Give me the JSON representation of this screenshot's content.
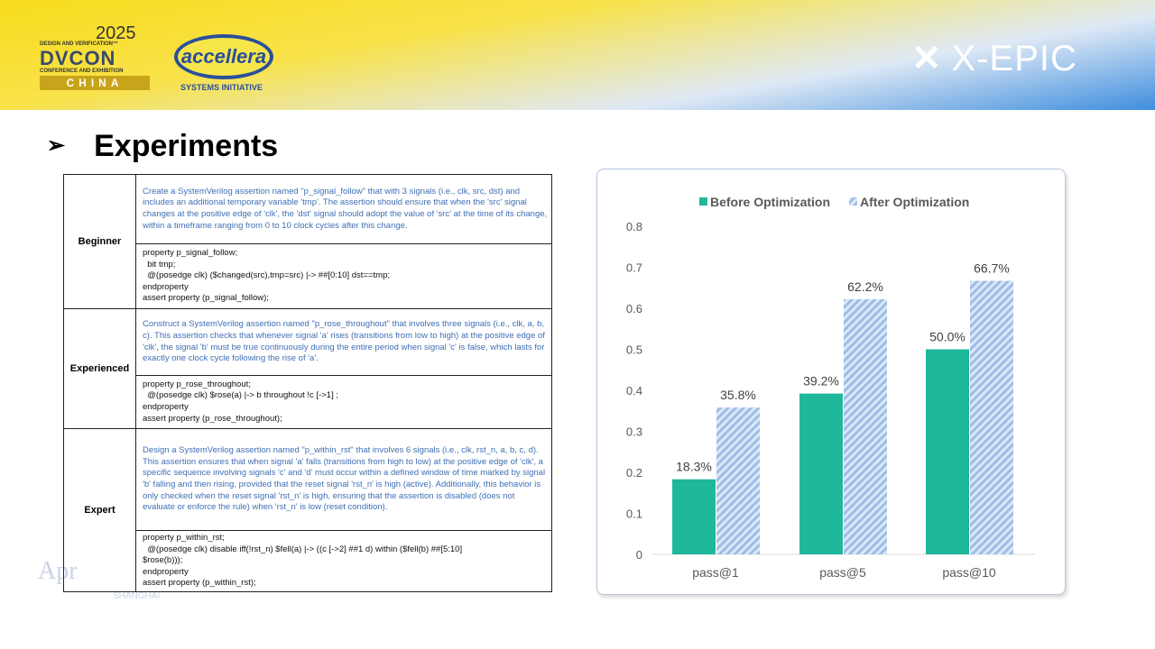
{
  "header": {
    "dvcon": {
      "year": "2025",
      "tagline": "DESIGN AND VERIFICATION™",
      "name": "DVCON",
      "sub": "CONFERENCE AND EXHIBITION",
      "region": "CHINA"
    },
    "accellera": {
      "name": "accellera",
      "sub": "SYSTEMS INITIATIVE"
    },
    "xepic": "X-EPIC"
  },
  "slide": {
    "title": "Experiments",
    "watermark": "Apr",
    "watermark_city": "SHANGHAI"
  },
  "table": {
    "rows": [
      {
        "level": "Beginner",
        "prompt": "Create a SystemVerilog assertion named \"p_signal_follow\" that with 3 signals (i.e., clk, src, dst) and includes an additional temporary variable 'tmp'. The assertion should ensure that when the 'src' signal changes at the positive edge of 'clk', the 'dst' signal should adopt the value of 'src' at the time of its change, within a timeframe ranging from 0 to 10 clock cycles after this change.",
        "code": "property p_signal_follow;\n  bit tmp;\n  @(posedge clk) ($changed(src),tmp=src) |-> ##[0:10] dst==tmp;\nendproperty\nassert property (p_signal_follow);"
      },
      {
        "level": "Experienced",
        "prompt": "Construct a SystemVerilog assertion named \"p_rose_throughout\" that involves three signals (i.e., clk, a, b, c). This assertion checks that whenever signal 'a' rises (transitions from low to high) at the positive edge of 'clk', the signal 'b' must be true continuously during the entire period when signal 'c' is false, which lasts for exactly one clock cycle following the rise of 'a'.",
        "code": "property p_rose_throughout;\n  @(posedge clk) $rose(a) |-> b throughout !c [->1] ;\nendproperty\nassert property (p_rose_throughout);"
      },
      {
        "level": "Expert",
        "prompt": "Design a SystemVerilog assertion named \"p_within_rst\" that involves 6 signals (i.e., clk, rst_n, a, b, c, d). This assertion ensures that when signal 'a' falls (transitions from high to low) at the positive edge of 'clk', a specific sequence involving signals 'c' and 'd' must occur within a defined window of time marked by signal 'b' falling and then rising, provided that the reset signal 'rst_n' is high (active). Additionally, this behavior is only checked when the reset signal 'rst_n' is high, ensuring that the assertion is disabled (does not evaluate or enforce the rule) when 'rst_n' is low (reset condition).",
        "code": "property p_within_rst;\n  @(posedge clk) disable iff(!rst_n) $fell(a) |-> ((c [->2] ##1 d) within ($fell(b) ##[5:10]\n$rose(b)));\nendproperty\nassert property (p_within_rst);"
      }
    ]
  },
  "chart_data": {
    "type": "bar",
    "categories": [
      "pass@1",
      "pass@5",
      "pass@10"
    ],
    "series": [
      {
        "name": "Before Optimization",
        "values": [
          0.183,
          0.392,
          0.5
        ],
        "labels": [
          "18.3%",
          "39.2%",
          "50.0%"
        ],
        "color": "#1fb89a",
        "pattern": "solid"
      },
      {
        "name": "After Optimization",
        "values": [
          0.358,
          0.622,
          0.667
        ],
        "labels": [
          "35.8%",
          "62.2%",
          "66.7%"
        ],
        "color": "#9dbde8",
        "pattern": "hatched"
      }
    ],
    "ylim": [
      0,
      0.8
    ],
    "yticks": [
      "0",
      "0.1",
      "0.2",
      "0.3",
      "0.4",
      "0.5",
      "0.6",
      "0.7",
      "0.8"
    ],
    "grid": false,
    "legend": "top"
  }
}
